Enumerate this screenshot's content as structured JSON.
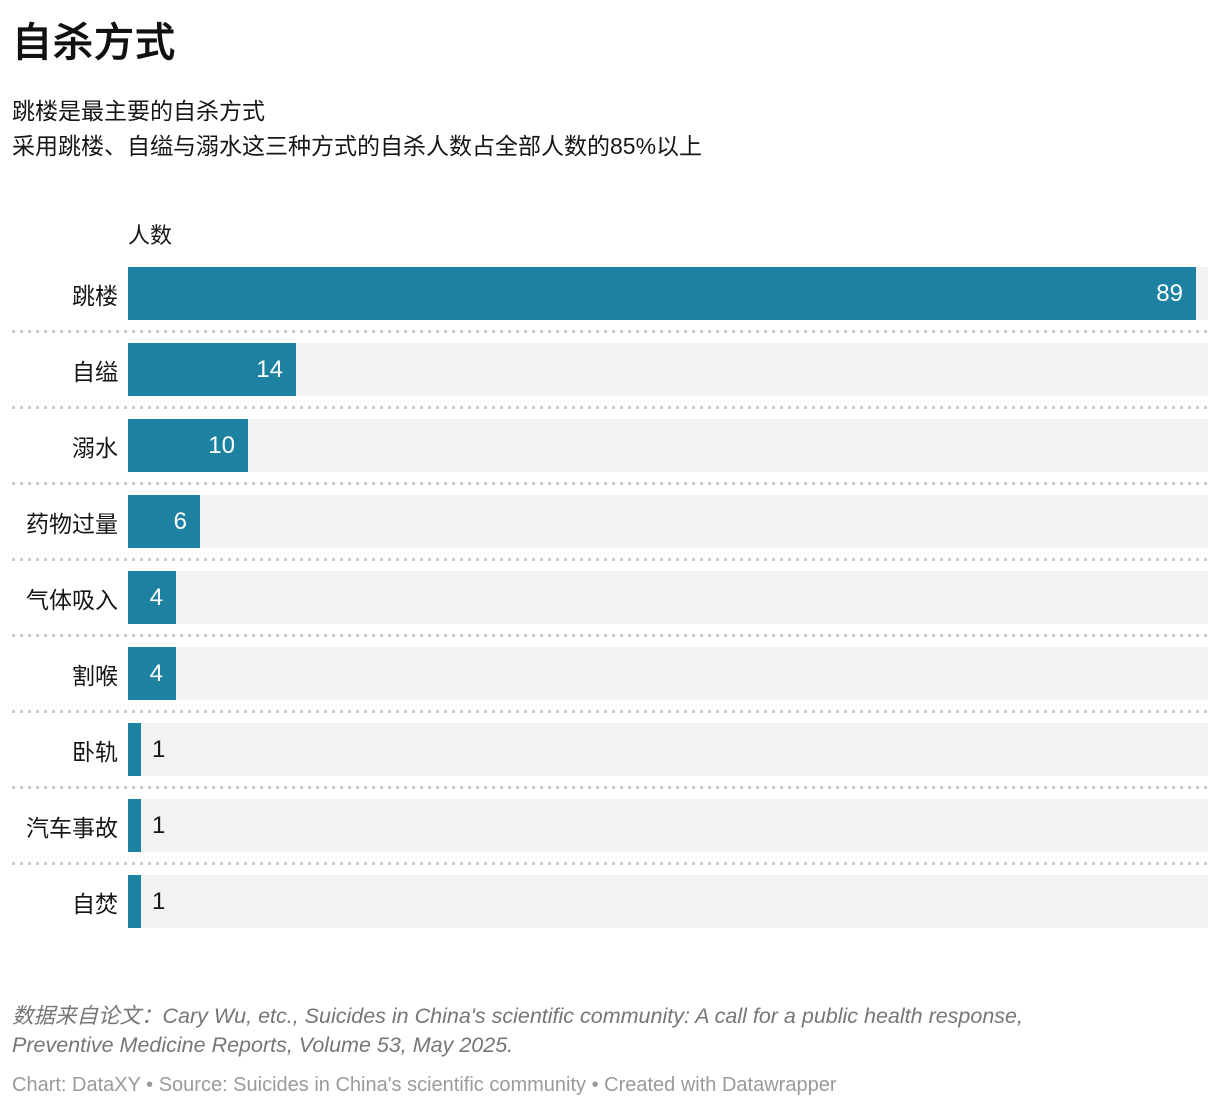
{
  "header": {
    "title": "自杀方式",
    "subtitle_line1": "跳楼是最主要的自杀方式",
    "subtitle_line2": "采用跳楼、自缢与溺水这三种方式的自杀人数占全部人数的85%以上"
  },
  "chart_data": {
    "type": "bar",
    "orientation": "horizontal",
    "value_axis_label": "人数",
    "categories": [
      "跳楼",
      "自缢",
      "溺水",
      "药物过量",
      "气体吸入",
      "割喉",
      "卧轨",
      "汽车事故",
      "自焚"
    ],
    "values": [
      89,
      14,
      10,
      6,
      4,
      4,
      1,
      1,
      1
    ],
    "xlim": [
      0,
      90
    ],
    "grid": "dotted-row-separators",
    "value_labels": "on-bars",
    "bar_color": "#1d81a2",
    "track_color": "#f2f2f2"
  },
  "footer": {
    "note_line1": "数据来自论文：Cary Wu, etc., Suicides in China's scientific community: A call for a public health response,",
    "note_line2": "Preventive Medicine Reports, Volume 53, May 2025.",
    "credit": "Chart: DataXY • Source: Suicides in China's scientific community • Created with Datawrapper"
  }
}
